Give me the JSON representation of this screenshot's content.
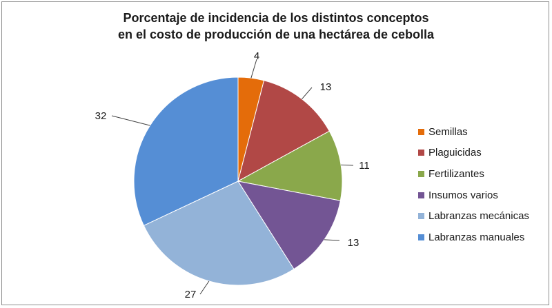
{
  "chart_data": {
    "type": "pie",
    "title_lines": [
      "Porcentaje de incidencia de los distintos conceptos",
      "en el costo de producción de una hectárea de cebolla"
    ],
    "categories": [
      "Semillas",
      "Plaguicidas",
      "Fertilizantes",
      "Insumos varios",
      "Labranzas mecánicas",
      "Labranzas manuales"
    ],
    "values": [
      4,
      13,
      11,
      13,
      27,
      32
    ],
    "data_labels": [
      "4",
      "13",
      "11",
      "13",
      "27",
      "32"
    ],
    "colors": [
      "#E46C0A",
      "#B14846",
      "#8AA84B",
      "#735594",
      "#93B3D8",
      "#558ED5"
    ],
    "legend_placement": "right"
  }
}
